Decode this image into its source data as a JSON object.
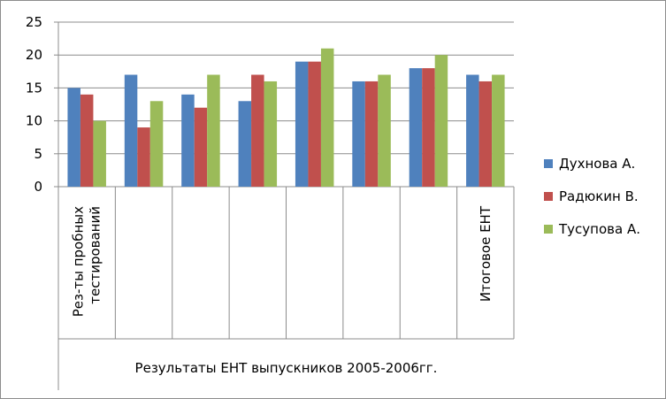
{
  "chart_data": {
    "type": "bar",
    "title": "",
    "xlabel": "",
    "ylabel": "",
    "ylim": [
      0,
      25
    ],
    "yticks": [
      "0",
      "5",
      "10",
      "15",
      "20",
      "25"
    ],
    "grid": true,
    "legend_position": "right",
    "categories": [
      [
        "Рез-ты пробных",
        "тестирований"
      ],
      [],
      [],
      [],
      [],
      [],
      [],
      [
        "Итоговое ЕНТ"
      ]
    ],
    "group_label": "Результаты ЕНТ выпускников 2005-2006гг.",
    "series": [
      {
        "name": "Духнова А.",
        "color": "#4f81bd",
        "values": [
          15,
          17,
          14,
          13,
          19,
          16,
          18,
          17
        ]
      },
      {
        "name": "Радюкин В.",
        "color": "#c0504d",
        "values": [
          14,
          9,
          12,
          17,
          19,
          16,
          18,
          16
        ]
      },
      {
        "name": "Тусупова А.",
        "color": "#9bbb59",
        "values": [
          10,
          13,
          17,
          16,
          21,
          17,
          20,
          17
        ]
      }
    ]
  }
}
